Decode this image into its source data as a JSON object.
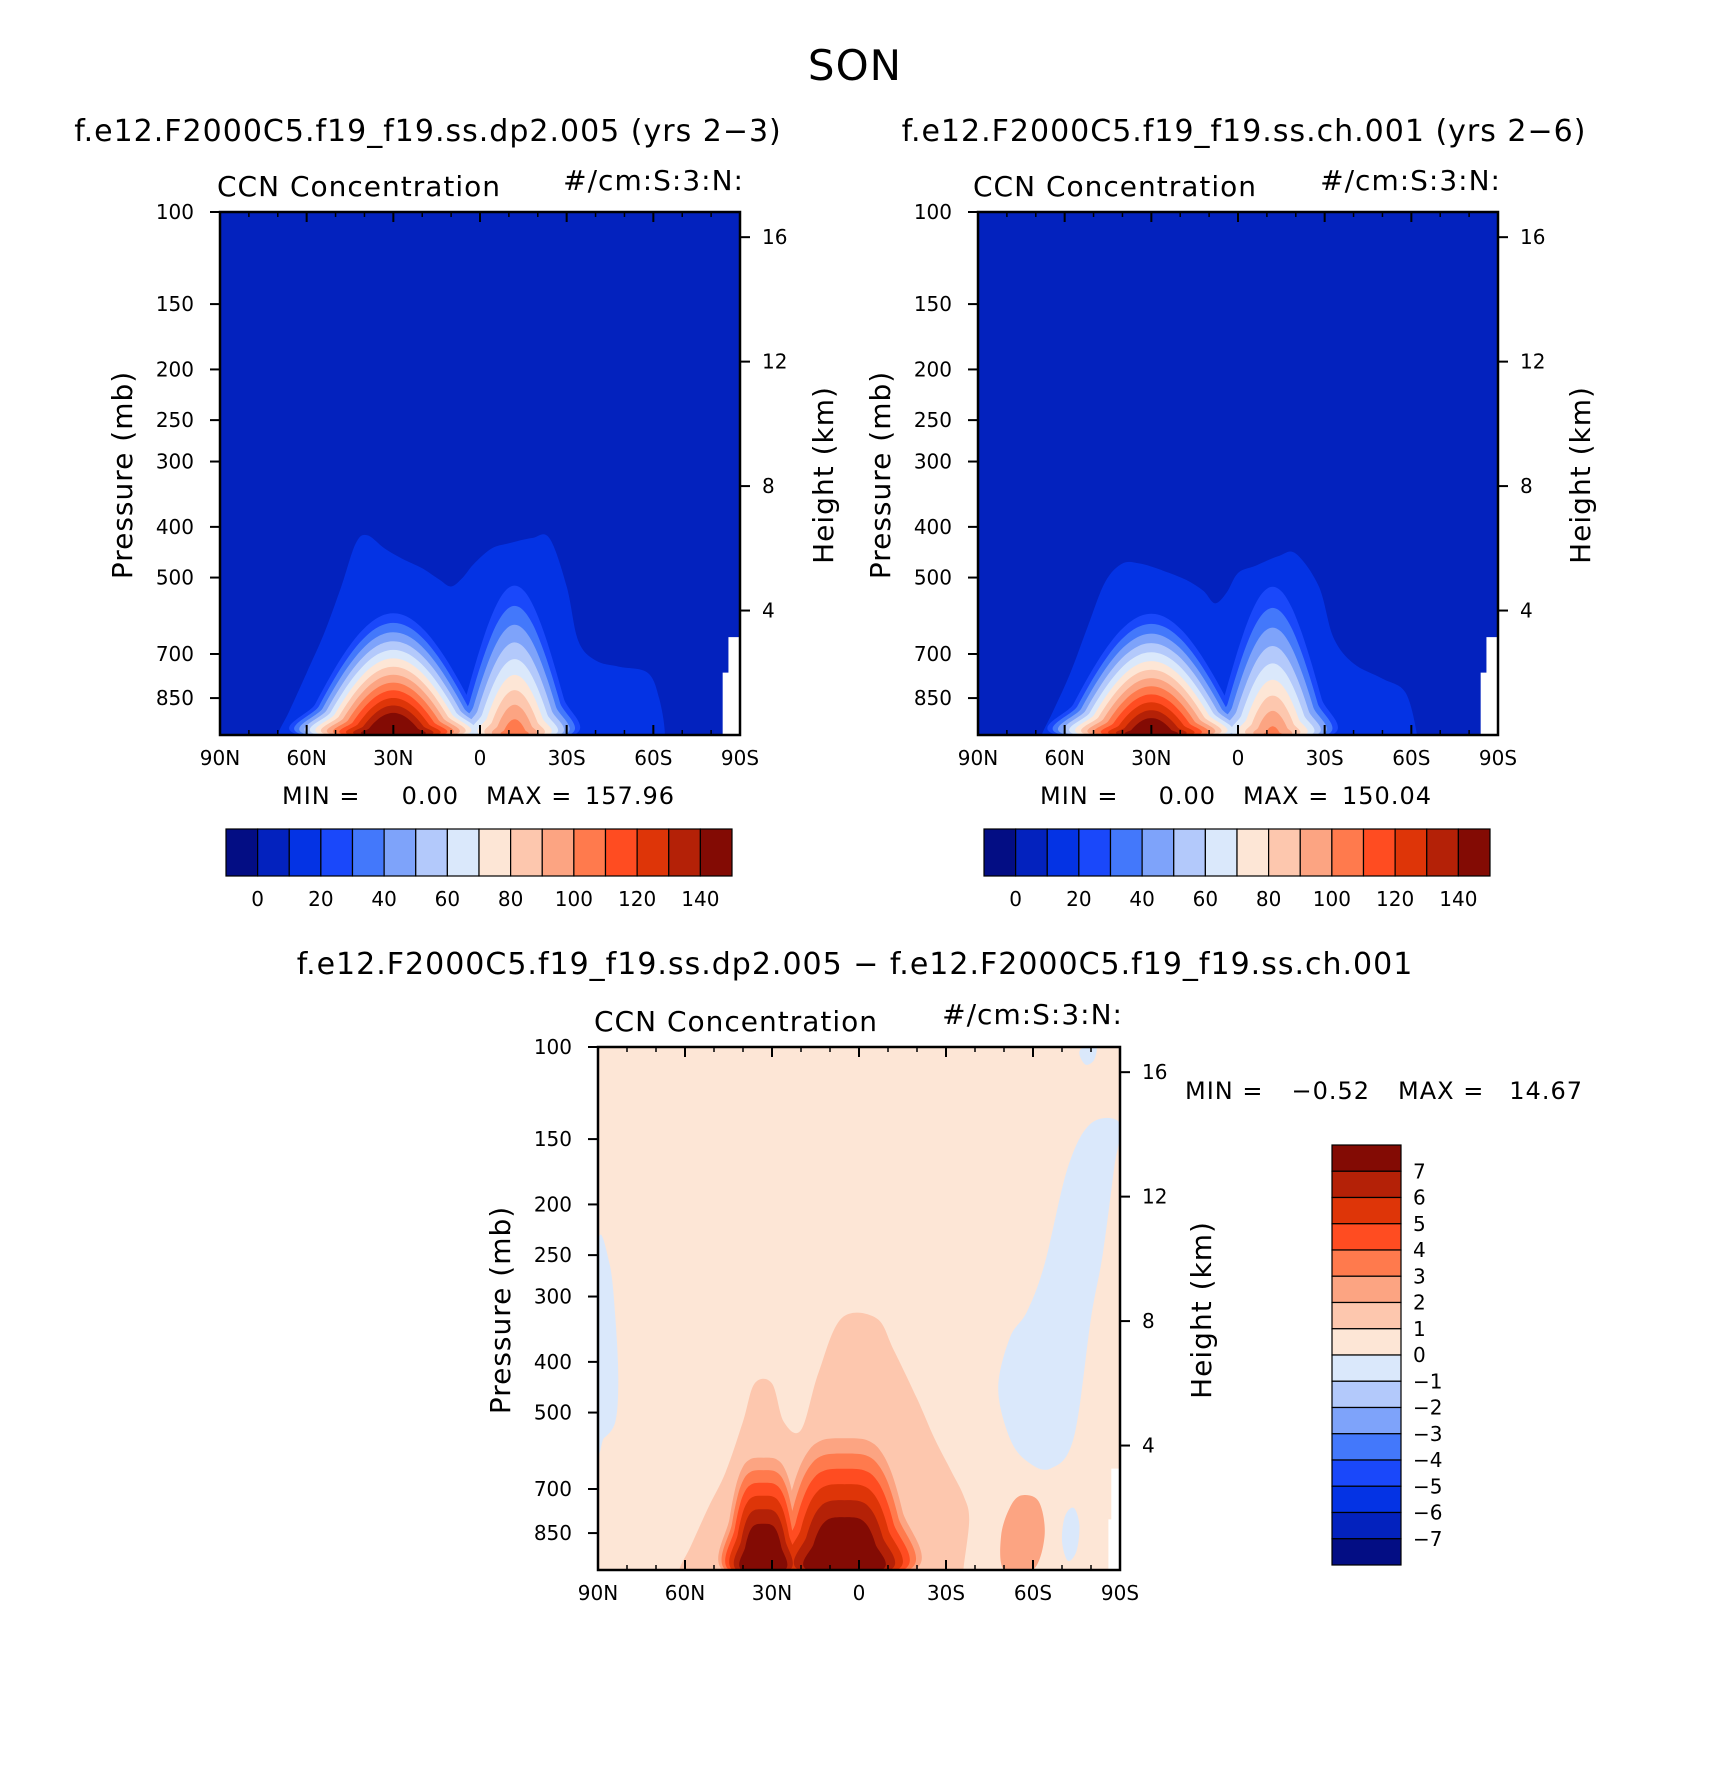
{
  "figure": {
    "title": "SON"
  },
  "colors": {
    "base_panel_background": "#0322be",
    "diff_panel_background": "#fde6d6",
    "base_palette": [
      "#030d84",
      "#0322be",
      "#0433e4",
      "#1a48fa",
      "#4378fb",
      "#7ea3fa",
      "#b3c9fb",
      "#dae8fb",
      "#fde6d6",
      "#fdc7ae",
      "#fca482",
      "#ff7a4d",
      "#ff4c21",
      "#de3508",
      "#b42107",
      "#830b04"
    ],
    "diff_palette": [
      "#030d84",
      "#0322be",
      "#0433e4",
      "#1a48fa",
      "#4378fb",
      "#7ea3fa",
      "#b3c9fb",
      "#dae8fb",
      "#fde6d6",
      "#fdc7ae",
      "#fca482",
      "#ff7a4d",
      "#ff4c21",
      "#de3508",
      "#b42107",
      "#830b04"
    ]
  },
  "chart_data": [
    {
      "id": "left",
      "type": "heatmap",
      "title": "f.e12.F2000C5.f19_f19.ss.dp2.005 (yrs 2−3)",
      "left_label": "CCN Concentration",
      "right_label": "#/cm:S:3:N:",
      "xlabel": "",
      "ylabel": "Pressure (mb)",
      "ylabel_right": "Height (km)",
      "x_ticks": [
        "90N",
        "60N",
        "30N",
        "0",
        "30S",
        "60S",
        "90S"
      ],
      "x_values": [
        90,
        60,
        30,
        0,
        -30,
        -60,
        -90
      ],
      "xlim": [
        90,
        -90
      ],
      "y_ticks": [
        100,
        150,
        200,
        250,
        300,
        400,
        500,
        700,
        850
      ],
      "ylim": [
        100,
        1000
      ],
      "y_scale": "log",
      "y_right_ticks": [
        16,
        12,
        8,
        4
      ],
      "min_label": "MIN =",
      "min_value": "0.00",
      "max_label": "MAX =",
      "max_value": "157.96",
      "colorbar_levels": [
        0,
        10,
        20,
        30,
        40,
        50,
        60,
        70,
        80,
        90,
        100,
        110,
        120,
        130,
        140
      ],
      "colorbar_labels": [
        "0",
        "20",
        "40",
        "60",
        "80",
        "100",
        "120",
        "140"
      ],
      "colorbar_orientation": "horizontal",
      "peaks": [
        {
          "lat": 30,
          "pressure": 880,
          "value": 157.96,
          "name": "northern"
        },
        {
          "lat": -12,
          "pressure": 880,
          "value": 100,
          "name": "southern"
        }
      ]
    },
    {
      "id": "right",
      "type": "heatmap",
      "title": "f.e12.F2000C5.f19_f19.ss.ch.001 (yrs 2−6)",
      "left_label": "CCN Concentration",
      "right_label": "#/cm:S:3:N:",
      "xlabel": "",
      "ylabel": "Pressure (mb)",
      "ylabel_right": "Height (km)",
      "x_ticks": [
        "90N",
        "60N",
        "30N",
        "0",
        "30S",
        "60S",
        "90S"
      ],
      "x_values": [
        90,
        60,
        30,
        0,
        -30,
        -60,
        -90
      ],
      "xlim": [
        90,
        -90
      ],
      "y_ticks": [
        100,
        150,
        200,
        250,
        300,
        400,
        500,
        700,
        850
      ],
      "ylim": [
        100,
        1000
      ],
      "y_scale": "log",
      "y_right_ticks": [
        16,
        12,
        8,
        4
      ],
      "min_label": "MIN =",
      "min_value": "0.00",
      "max_label": "MAX =",
      "max_value": "150.04",
      "colorbar_levels": [
        0,
        10,
        20,
        30,
        40,
        50,
        60,
        70,
        80,
        90,
        100,
        110,
        120,
        130,
        140
      ],
      "colorbar_labels": [
        "0",
        "20",
        "40",
        "60",
        "80",
        "100",
        "120",
        "140"
      ],
      "colorbar_orientation": "horizontal",
      "peaks": [
        {
          "lat": 30,
          "pressure": 880,
          "value": 150.04,
          "name": "northern"
        },
        {
          "lat": -12,
          "pressure": 880,
          "value": 95,
          "name": "southern"
        }
      ]
    },
    {
      "id": "diff",
      "type": "heatmap",
      "title": "f.e12.F2000C5.f19_f19.ss.dp2.005 − f.e12.F2000C5.f19_f19.ss.ch.001",
      "left_label": "CCN Concentration",
      "right_label": "#/cm:S:3:N:",
      "xlabel": "",
      "ylabel": "Pressure (mb)",
      "ylabel_right": "Height (km)",
      "x_ticks": [
        "90N",
        "60N",
        "30N",
        "0",
        "30S",
        "60S",
        "90S"
      ],
      "x_values": [
        90,
        60,
        30,
        0,
        -30,
        -60,
        -90
      ],
      "xlim": [
        90,
        -90
      ],
      "y_ticks": [
        100,
        150,
        200,
        250,
        300,
        400,
        500,
        700,
        850
      ],
      "ylim": [
        100,
        1000
      ],
      "y_scale": "log",
      "y_right_ticks": [
        16,
        12,
        8,
        4
      ],
      "min_label": "MIN =",
      "min_value": "−0.52",
      "max_label": "MAX =",
      "max_value": "14.67",
      "colorbar_levels": [
        -7,
        -6,
        -5,
        -4,
        -3,
        -2,
        -1,
        0,
        1,
        2,
        3,
        4,
        5,
        6,
        7
      ],
      "colorbar_labels": [
        "7",
        "6",
        "5",
        "4",
        "3",
        "2",
        "1",
        "0",
        "−1",
        "−2",
        "−3",
        "−4",
        "−5",
        "−6",
        "−7"
      ],
      "colorbar_orientation": "vertical",
      "peaks": [
        {
          "lat": 33,
          "pressure": 850,
          "value": 14.67,
          "name": "northern"
        },
        {
          "lat": 5,
          "pressure": 870,
          "value": 8,
          "name": "equatorial"
        }
      ]
    }
  ]
}
